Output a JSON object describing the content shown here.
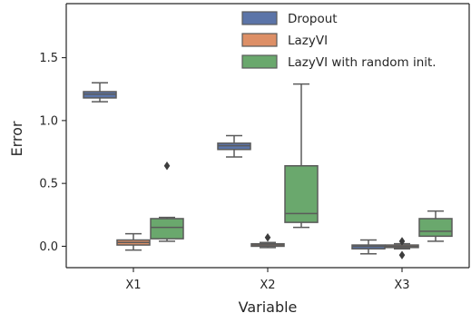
{
  "chart_data": {
    "type": "box",
    "xlabel": "Variable",
    "ylabel": "Error",
    "categories": [
      "X1",
      "X2",
      "X3"
    ],
    "ylim": [
      -0.17,
      1.93
    ],
    "yticks": [
      "0.0",
      "0.5",
      "1.0",
      "1.5"
    ],
    "ytick_values": [
      0.0,
      0.5,
      1.0,
      1.5
    ],
    "grid": false,
    "legend_position": "top-right",
    "series": [
      {
        "name": "Dropout",
        "color": "#5b74a8",
        "boxes": [
          {
            "whislo": 1.15,
            "q1": 1.18,
            "med": 1.21,
            "q3": 1.23,
            "whishi": 1.3,
            "fliers": []
          },
          {
            "whislo": 0.71,
            "q1": 0.77,
            "med": 0.8,
            "q3": 0.82,
            "whishi": 0.88,
            "fliers": []
          },
          {
            "whislo": -0.06,
            "q1": -0.02,
            "med": 0.0,
            "q3": 0.01,
            "whishi": 0.05,
            "fliers": []
          }
        ]
      },
      {
        "name": "LazyVI",
        "color": "#dd8f66",
        "boxes": [
          {
            "whislo": -0.03,
            "q1": 0.01,
            "med": 0.03,
            "q3": 0.05,
            "whishi": 0.1,
            "fliers": []
          },
          {
            "whislo": -0.01,
            "q1": 0.0,
            "med": 0.01,
            "q3": 0.02,
            "whishi": 0.03,
            "fliers": [
              0.07
            ]
          },
          {
            "whislo": -0.02,
            "q1": -0.01,
            "med": 0.0,
            "q3": 0.01,
            "whishi": 0.02,
            "fliers": [
              0.04,
              -0.07
            ]
          }
        ]
      },
      {
        "name": "LazyVI with random init.",
        "color": "#6aa86d",
        "boxes": [
          {
            "whislo": 0.04,
            "q1": 0.06,
            "med": 0.15,
            "q3": 0.22,
            "whishi": 0.23,
            "fliers": [
              0.64
            ]
          },
          {
            "whislo": 0.15,
            "q1": 0.19,
            "med": 0.26,
            "q3": 0.64,
            "whishi": 1.29,
            "fliers": []
          },
          {
            "whislo": 0.04,
            "q1": 0.08,
            "med": 0.12,
            "q3": 0.22,
            "whishi": 0.28,
            "fliers": []
          }
        ]
      }
    ]
  }
}
